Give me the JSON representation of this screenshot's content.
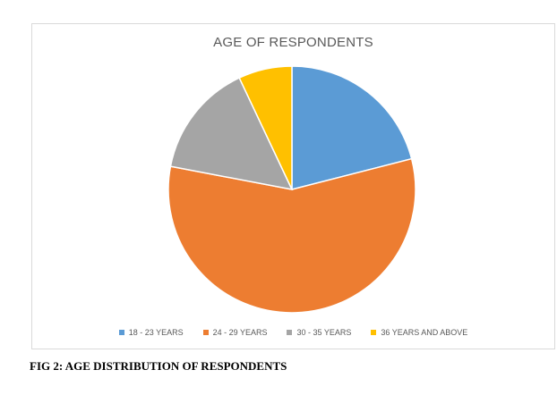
{
  "chart_data": {
    "type": "pie",
    "title": "AGE OF RESPONDENTS",
    "categories": [
      "18 - 23 YEARS",
      "24 - 29 YEARS",
      "30 - 35 YEARS",
      "36 YEARS AND ABOVE"
    ],
    "values": [
      21,
      57,
      15,
      7
    ],
    "colors": [
      "#5b9bd5",
      "#ed7d31",
      "#a5a5a5",
      "#ffc000"
    ],
    "legend_position": "bottom"
  },
  "caption": "FIG 2: AGE DISTRIBUTION OF RESPONDENTS"
}
